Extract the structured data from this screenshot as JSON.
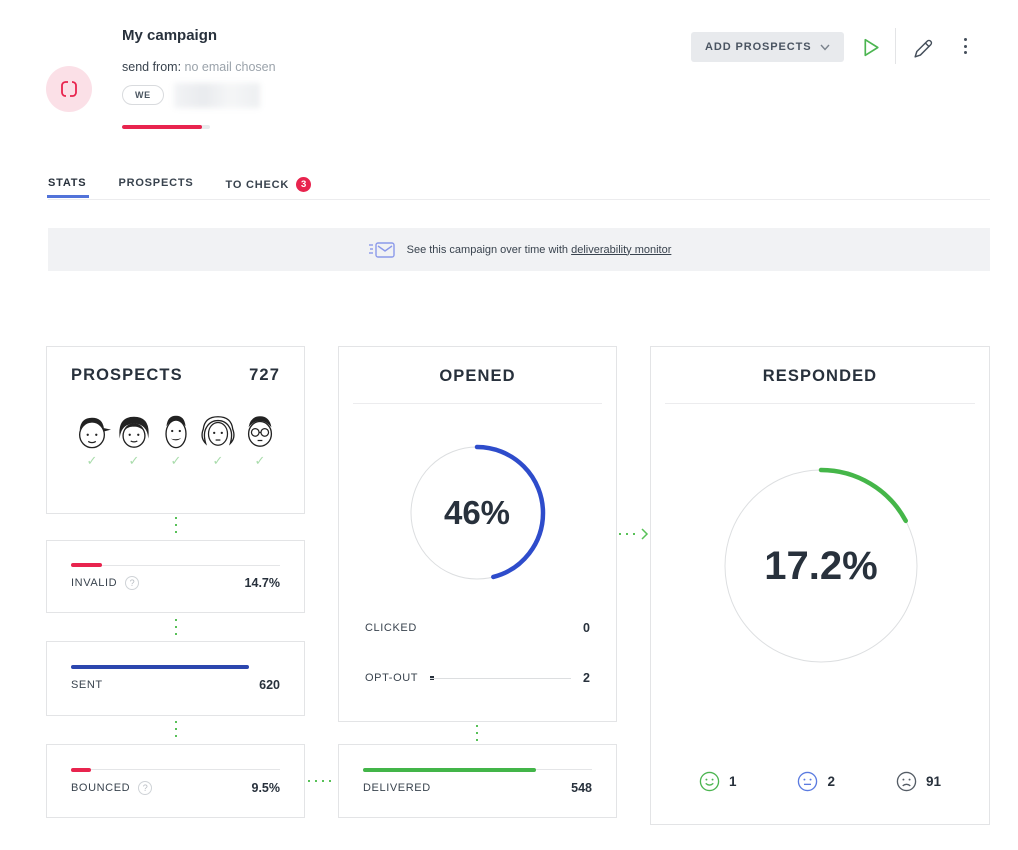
{
  "colors": {
    "accent_red": "#e8244e",
    "blue": "#2e4ccb",
    "green": "#45b649",
    "navy": "#28313c"
  },
  "header": {
    "title": "My campaign",
    "send_from_label": "send from:",
    "send_from_value": "no email chosen",
    "step_badge": "WE",
    "progress_percent": 91,
    "actions": {
      "add_prospects_label": "ADD PROSPECTS"
    }
  },
  "tabs": {
    "stats": "STATS",
    "prospects": "PROSPECTS",
    "to_check": "TO CHECK",
    "to_check_badge": "3"
  },
  "banner": {
    "text": "See this campaign over time with",
    "link_text": "deliverability monitor"
  },
  "cards": {
    "prospects": {
      "title": "PROSPECTS",
      "value": "727"
    },
    "invalid": {
      "label": "INVALID",
      "value": "14.7%",
      "percent": 14.7
    },
    "sent": {
      "label": "SENT",
      "value": "620",
      "percent": 85.3
    },
    "bounced": {
      "label": "BOUNCED",
      "value": "9.5%",
      "percent": 9.5
    },
    "opened": {
      "title": "OPENED",
      "value": "46%",
      "percent": 46,
      "clicked": {
        "label": "CLICKED",
        "value": "0"
      },
      "optout": {
        "label": "OPT-OUT",
        "value": "2"
      }
    },
    "delivered": {
      "label": "DELIVERED",
      "value": "548",
      "percent": 75.4
    },
    "responded": {
      "title": "RESPONDED",
      "value": "17.2%",
      "percent": 17.2,
      "sentiments": [
        {
          "name": "positive",
          "value": "1"
        },
        {
          "name": "neutral",
          "value": "2"
        },
        {
          "name": "negative",
          "value": "91"
        }
      ]
    }
  }
}
